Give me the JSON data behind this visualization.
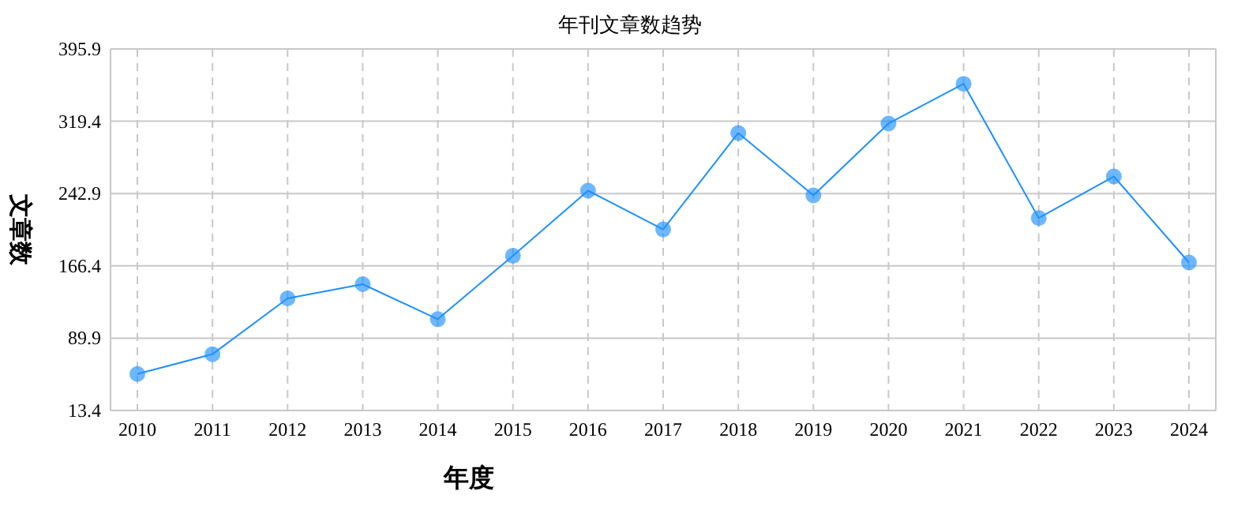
{
  "chart_data": {
    "type": "line",
    "title": "年刊文章数趋势",
    "xlabel": "年度",
    "ylabel": "文章数",
    "categories": [
      "2010",
      "2011",
      "2012",
      "2013",
      "2014",
      "2015",
      "2016",
      "2017",
      "2018",
      "2019",
      "2020",
      "2021",
      "2022",
      "2023",
      "2024"
    ],
    "series": [
      {
        "color": "#1e90ff",
        "values": [
          52,
          73,
          132,
          147,
          110,
          177,
          246,
          205,
          307,
          241,
          317,
          359,
          217,
          261,
          170
        ]
      }
    ],
    "ylim": [
      13.4,
      395.9
    ],
    "yticks": [
      13.4,
      89.9,
      166.4,
      242.9,
      319.4,
      395.9
    ],
    "grid": true,
    "marker": "circle"
  }
}
